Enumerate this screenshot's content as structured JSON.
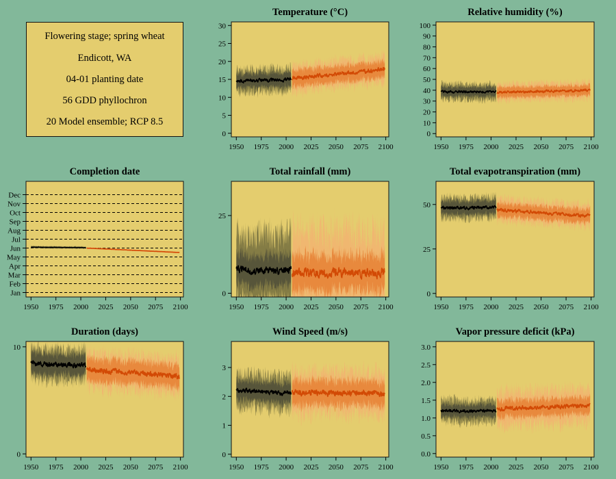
{
  "colors": {
    "background": "#82B89A",
    "panel": "#E4CD6E",
    "historical_line": "#000000",
    "historical_band_outer": "#57553A",
    "historical_band_inner": "#847C45",
    "future_line": "#D24A05",
    "future_band_outer": "#F0B770",
    "future_band_inner": "#E8893D"
  },
  "info": {
    "lines": [
      "Flowering stage; spring wheat",
      "Endicott, WA",
      "04-01 planting date",
      "56 GDD phyllochron",
      "20 Model ensemble; RCP 8.5"
    ]
  },
  "chart_data": [
    {
      "id": "temperature",
      "type": "line",
      "title": "Temperature (°C)",
      "ylim": [
        -1,
        31
      ],
      "yticks": [
        0,
        5,
        10,
        15,
        20,
        25,
        30
      ],
      "ytick_labels": [
        "0",
        "5",
        "10",
        "15",
        "20",
        "25",
        "30"
      ],
      "xlim": [
        1945,
        2103
      ],
      "xticks": [
        1950,
        1975,
        2000,
        2025,
        2050,
        2075,
        2100
      ],
      "historical": {
        "start": 1950,
        "end": 2005,
        "mean": [
          14.5,
          15.0
        ],
        "band_inner": 2.0,
        "band_outer": 3.2
      },
      "future": {
        "start": 2006,
        "end": 2099,
        "mean": [
          15.3,
          17.8
        ],
        "band_inner": 2.4,
        "band_outer": 3.8
      },
      "grid": false
    },
    {
      "id": "relative-humidity",
      "type": "line",
      "title": "Relative humidity (%)",
      "ylim": [
        -3,
        103
      ],
      "yticks": [
        0,
        10,
        20,
        30,
        40,
        50,
        60,
        70,
        80,
        90,
        100
      ],
      "ytick_labels": [
        "0",
        "10",
        "20",
        "30",
        "40",
        "50",
        "60",
        "70",
        "80",
        "90",
        "100"
      ],
      "xlim": [
        1945,
        2103
      ],
      "xticks": [
        1950,
        1975,
        2000,
        2025,
        2050,
        2075,
        2100
      ],
      "historical": {
        "start": 1950,
        "end": 2005,
        "mean": [
          38.5,
          38.5
        ],
        "band_inner": 4.5,
        "band_outer": 7.5
      },
      "future": {
        "start": 2006,
        "end": 2099,
        "mean": [
          38.0,
          40.0
        ],
        "band_inner": 5.0,
        "band_outer": 8.0
      },
      "grid": false
    },
    {
      "id": "completion-date",
      "type": "line",
      "title": "Completion date",
      "ylim": [
        -0.5,
        12.5
      ],
      "yticks": [
        0,
        1,
        2,
        3,
        4,
        5,
        6,
        7,
        8,
        9,
        10,
        11
      ],
      "ytick_labels": [
        "Jan",
        "Feb",
        "Mar",
        "Apr",
        "May",
        "Jun",
        "Jul",
        "Aug",
        "Sep",
        "Oct",
        "Nov",
        "Dec"
      ],
      "xlim": [
        1945,
        2103
      ],
      "xticks": [
        1950,
        1975,
        2000,
        2025,
        2050,
        2075,
        2100
      ],
      "historical": {
        "start": 1950,
        "end": 2005,
        "mean": [
          5.1,
          5.05
        ],
        "band_inner": 0.06,
        "band_outer": 0.12
      },
      "future": {
        "start": 2006,
        "end": 2099,
        "mean": [
          5.0,
          4.5
        ],
        "band_inner": 0.05,
        "band_outer": 0.09
      },
      "grid": true
    },
    {
      "id": "total-rainfall",
      "type": "line",
      "title": "Total rainfall (mm)",
      "ylim": [
        -1.2,
        36
      ],
      "yticks": [
        0,
        25
      ],
      "ytick_labels": [
        "0",
        "25"
      ],
      "xlim": [
        1945,
        2103
      ],
      "xticks": [
        1950,
        1975,
        2000,
        2025,
        2050,
        2075,
        2100
      ],
      "historical": {
        "start": 1950,
        "end": 2005,
        "mean": [
          7.5,
          7.0
        ],
        "band_inner": 5.0,
        "band_outer": 12.0
      },
      "future": {
        "start": 2006,
        "end": 2099,
        "mean": [
          6.5,
          6.5
        ],
        "band_inner": 6.0,
        "band_outer": 14.0
      },
      "grid": false
    },
    {
      "id": "total-evapotranspiration",
      "type": "line",
      "title": "Total evapotranspiration (mm)",
      "ylim": [
        -2,
        63
      ],
      "yticks": [
        0,
        25,
        50
      ],
      "ytick_labels": [
        "0",
        "25",
        "50"
      ],
      "xlim": [
        1945,
        2103
      ],
      "xticks": [
        1950,
        1975,
        2000,
        2025,
        2050,
        2075,
        2100
      ],
      "historical": {
        "start": 1950,
        "end": 2005,
        "mean": [
          48.0,
          48.5
        ],
        "band_inner": 4.0,
        "band_outer": 6.0
      },
      "future": {
        "start": 2006,
        "end": 2099,
        "mean": [
          47.0,
          43.5
        ],
        "band_inner": 4.0,
        "band_outer": 6.5
      },
      "grid": false
    },
    {
      "id": "duration",
      "type": "line",
      "title": "Duration (days)",
      "ylim": [
        -0.3,
        10.5
      ],
      "yticks": [
        0,
        10
      ],
      "ytick_labels": [
        "0",
        "10"
      ],
      "xlim": [
        1945,
        2103
      ],
      "xticks": [
        1950,
        1975,
        2000,
        2025,
        2050,
        2075,
        2100
      ],
      "historical": {
        "start": 1950,
        "end": 2005,
        "mean": [
          8.4,
          8.3
        ],
        "band_inner": 1.0,
        "band_outer": 1.5
      },
      "future": {
        "start": 2006,
        "end": 2099,
        "mean": [
          7.9,
          7.2
        ],
        "band_inner": 1.1,
        "band_outer": 1.7
      },
      "grid": false
    },
    {
      "id": "wind-speed",
      "type": "line",
      "title": "Wind Speed (m/s)",
      "ylim": [
        -0.1,
        3.9
      ],
      "yticks": [
        0,
        1,
        2,
        3
      ],
      "ytick_labels": [
        "0",
        "1",
        "2",
        "3"
      ],
      "xlim": [
        1945,
        2103
      ],
      "xticks": [
        1950,
        1975,
        2000,
        2025,
        2050,
        2075,
        2100
      ],
      "historical": {
        "start": 1950,
        "end": 2005,
        "mean": [
          2.2,
          2.1
        ],
        "band_inner": 0.35,
        "band_outer": 0.6
      },
      "future": {
        "start": 2006,
        "end": 2099,
        "mean": [
          2.15,
          2.1
        ],
        "band_inner": 0.45,
        "band_outer": 0.75
      },
      "grid": false
    },
    {
      "id": "vapor-pressure-deficit",
      "type": "line",
      "title": "Vapor pressure deficit (kPa)",
      "ylim": [
        -0.1,
        3.15
      ],
      "yticks": [
        0.0,
        0.5,
        1.0,
        1.5,
        2.0,
        2.5,
        3.0
      ],
      "ytick_labels": [
        "0.0",
        "0.5",
        "1.0",
        "1.5",
        "2.0",
        "2.5",
        "3.0"
      ],
      "xlim": [
        1945,
        2103
      ],
      "xticks": [
        1950,
        1975,
        2000,
        2025,
        2050,
        2075,
        2100
      ],
      "historical": {
        "start": 1950,
        "end": 2005,
        "mean": [
          1.2,
          1.2
        ],
        "band_inner": 0.18,
        "band_outer": 0.32
      },
      "future": {
        "start": 2006,
        "end": 2099,
        "mean": [
          1.25,
          1.35
        ],
        "band_inner": 0.25,
        "band_outer": 0.5
      },
      "grid": false
    }
  ]
}
